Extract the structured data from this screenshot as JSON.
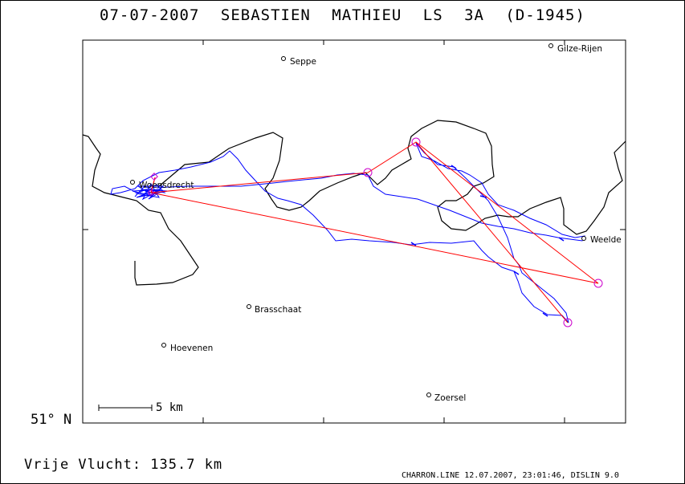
{
  "title": "07-07-2007   SEBASTIEN MATHIEU   LS 3A (D-1945)",
  "latitude_label": "51° N",
  "distance_label": "Vrije Vlucht:  135.7 km",
  "scale_label": "5 km",
  "footer": "CHARRON.LINE 12.07.2007, 23:01:46, DISLIN 9.0",
  "colors": {
    "track": "#0000ff",
    "task": "#ff0000",
    "turnpoint": "#cc00cc",
    "border": "#000000"
  },
  "places": [
    {
      "id": "seppe",
      "name": "Seppe"
    },
    {
      "id": "gilze-rijen",
      "name": "Gilze-Rijen"
    },
    {
      "id": "weelde",
      "name": "Weelde"
    },
    {
      "id": "brasschaat",
      "name": "Brasschaat"
    },
    {
      "id": "hoevenen",
      "name": "Hoevenen"
    },
    {
      "id": "zoersel",
      "name": "Zoersel"
    },
    {
      "id": "woensdrecht",
      "name": "Woensdrecht"
    }
  ]
}
